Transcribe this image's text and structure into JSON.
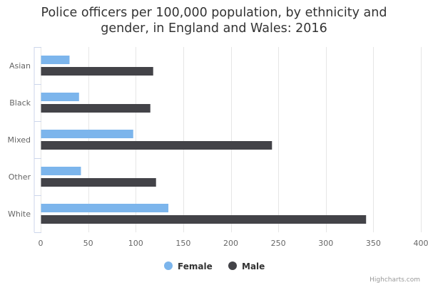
{
  "chart_data": {
    "type": "bar",
    "orientation": "horizontal",
    "title_line1": "Police officers per 100,000 population, by ethnicity and",
    "title_line2": "gender, in England and Wales: 2016",
    "categories": [
      "Asian",
      "Black",
      "Mixed",
      "Other",
      "White"
    ],
    "series": [
      {
        "name": "Female",
        "color": "#7cb5ec",
        "values": [
          30,
          40,
          97,
          42,
          134
        ]
      },
      {
        "name": "Male",
        "color": "#434348",
        "values": [
          118,
          115,
          243,
          121,
          342
        ]
      }
    ],
    "xlim": [
      0,
      400
    ],
    "xticks": [
      0,
      50,
      100,
      150,
      200,
      250,
      300,
      350,
      400
    ],
    "grid": true,
    "legend_placement": "bottom-center",
    "credits": "Highcharts.com"
  }
}
